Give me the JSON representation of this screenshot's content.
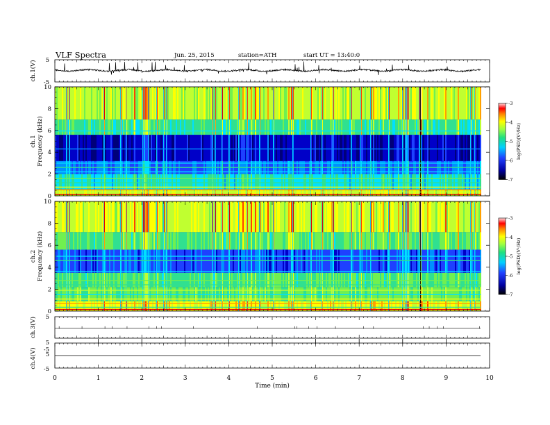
{
  "header": {
    "title": "VLF  Spectra",
    "date": "Jun. 25, 2015",
    "station": "station=ATH",
    "start": "start  UT =   13:40:0"
  },
  "chart_data": [
    {
      "type": "line",
      "panel": "ch1-waveform",
      "ylabel": "ch.1(V)",
      "ylim": [
        -5,
        5
      ],
      "yticks": [
        5,
        -5
      ],
      "xlim": [
        0,
        10
      ],
      "note": "noisy waveform centered near 0 V"
    },
    {
      "type": "heatmap",
      "panel": "ch1-spectrogram",
      "ylabel": "Frequency  (kHz)",
      "ylabel_ch": "ch.1",
      "ylim": [
        0,
        10
      ],
      "yticks": [
        0,
        2,
        4,
        6,
        8,
        10
      ],
      "xlim": [
        0,
        10
      ],
      "colorbar": {
        "label": "log(PSD)(V²/Hz)",
        "ticks": [
          -3,
          -4,
          -5,
          -6,
          -7
        ]
      }
    },
    {
      "type": "heatmap",
      "panel": "ch2-spectrogram",
      "ylabel": "Frequency  (kHz)",
      "ylabel_ch": "ch.2",
      "ylim": [
        0,
        10
      ],
      "yticks": [
        0,
        2,
        4,
        6,
        8,
        10
      ],
      "xlim": [
        0,
        10
      ],
      "colorbar": {
        "label": "log(PSD)(V²/Hz)",
        "ticks": [
          -3,
          -4,
          -5,
          -6,
          -7
        ]
      }
    },
    {
      "type": "line",
      "panel": "ch3-waveform",
      "ylabel": "ch.3(V)",
      "ylim": [
        -5,
        5
      ],
      "yticks": [
        5
      ],
      "xlim": [
        0,
        10
      ]
    },
    {
      "type": "line",
      "panel": "ch4-waveform",
      "ylabel": "ch.4(V)",
      "ylim": [
        -5,
        5
      ],
      "yticks": [
        5,
        -5,
        5,
        -5
      ],
      "xlim": [
        0,
        10
      ],
      "xlabel": "Time  (min)",
      "xticks": [
        0,
        1,
        2,
        3,
        4,
        5,
        6,
        7,
        8,
        9,
        10
      ]
    }
  ]
}
